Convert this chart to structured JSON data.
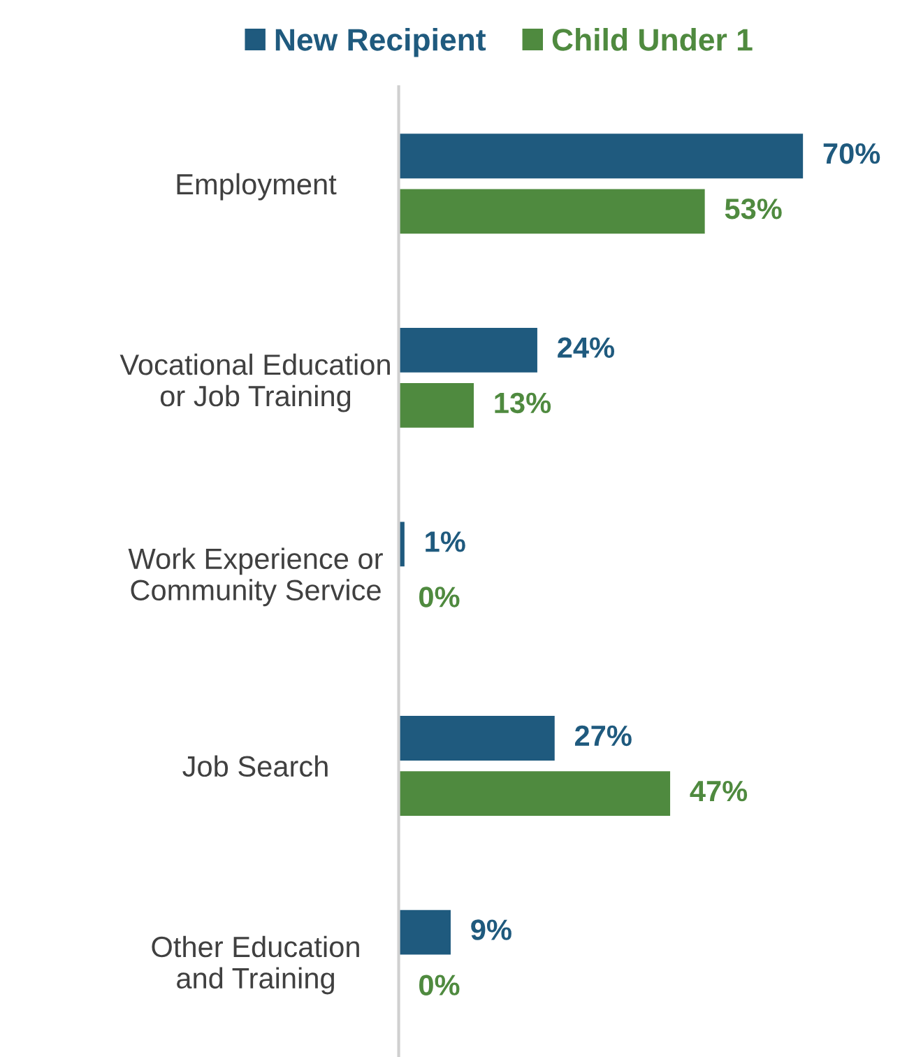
{
  "chart_data": {
    "type": "bar",
    "orientation": "horizontal",
    "categories": [
      "Employment",
      "Vocational Education\nor Job Training",
      "Work Experience or\nCommunity Service",
      "Job Search",
      "Other Education\nand Training"
    ],
    "series": [
      {
        "name": "New Recipient",
        "color": "#1f5a7e",
        "values": [
          70,
          24,
          1,
          27,
          9
        ],
        "value_labels": [
          "70%",
          "24%",
          "1%",
          "27%",
          "9%"
        ]
      },
      {
        "name": "Child Under 1",
        "color": "#4f8a3f",
        "values": [
          53,
          13,
          0,
          47,
          0
        ],
        "value_labels": [
          "53%",
          "13%",
          "0%",
          "47%",
          "0%"
        ]
      }
    ],
    "legend": "top",
    "grid": false,
    "tick_labels": "y"
  }
}
